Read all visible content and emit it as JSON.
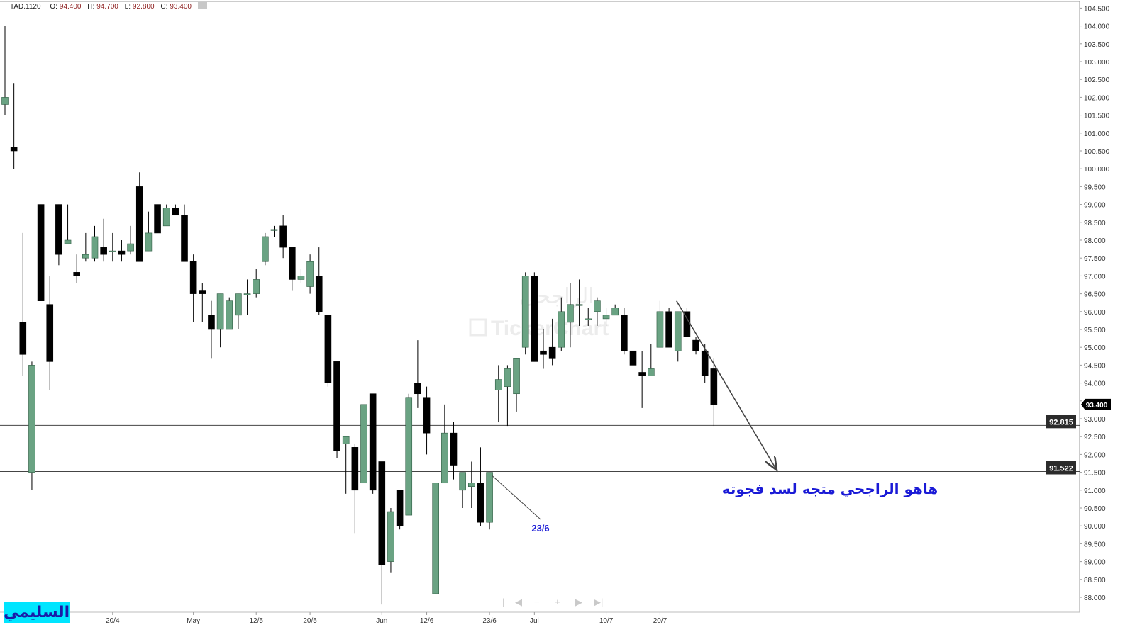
{
  "header": {
    "symbol": "TAD.1120",
    "open_label": "O:",
    "open": "94.400",
    "high_label": "H:",
    "high": "94.700",
    "low_label": "L:",
    "low": "92.800",
    "close_label": "C:",
    "close": "93.400",
    "more": "···"
  },
  "brand_text": "السليمي",
  "watermark": {
    "arabic": "الراجحي",
    "latin": "TickerChart"
  },
  "colors": {
    "up": "#6aa383",
    "down": "#000000",
    "lines": "#444444",
    "annotation": "#1a1ad6",
    "price_tag": "#2b2b2b"
  },
  "chart_data": {
    "type": "candlestick",
    "y_axis": {
      "min": 88.0,
      "max": 104.5,
      "step": 0.5,
      "side": "right",
      "tick_labels": [
        "104.500",
        "104.000",
        "103.500",
        "103.000",
        "102.500",
        "102.000",
        "101.500",
        "101.000",
        "100.500",
        "100.000",
        "99.500",
        "99.000",
        "98.500",
        "98.000",
        "97.500",
        "97.000",
        "96.500",
        "96.000",
        "95.500",
        "95.000",
        "94.500",
        "94.000",
        "93.500",
        "93.000",
        "92.500",
        "92.000",
        "91.500",
        "91.000",
        "90.500",
        "90.000",
        "89.500",
        "89.000",
        "88.500",
        "88.000"
      ]
    },
    "x_axis": {
      "labels": [
        "20/4",
        "May",
        "12/5",
        "20/5",
        "Jun",
        "12/6",
        "23/6",
        "Jul",
        "10/7",
        "20/7"
      ],
      "label_bar_index": [
        12,
        21,
        28,
        34,
        42,
        47,
        54,
        59,
        67,
        73
      ]
    },
    "candles": [
      {
        "o": 101.8,
        "h": 104.0,
        "l": 101.5,
        "c": 102.0
      },
      {
        "o": 100.6,
        "h": 102.4,
        "l": 100.0,
        "c": 100.5
      },
      {
        "o": 95.7,
        "h": 98.2,
        "l": 94.2,
        "c": 94.8
      },
      {
        "o": 91.5,
        "h": 94.6,
        "l": 91.0,
        "c": 94.5
      },
      {
        "o": 99.0,
        "h": 99.0,
        "l": 96.3,
        "c": 96.3
      },
      {
        "o": 96.2,
        "h": 97.0,
        "l": 93.8,
        "c": 94.6
      },
      {
        "o": 99.0,
        "h": 99.0,
        "l": 97.3,
        "c": 97.6
      },
      {
        "o": 97.9,
        "h": 99.0,
        "l": 97.9,
        "c": 98.0
      },
      {
        "o": 97.1,
        "h": 97.6,
        "l": 96.8,
        "c": 97.0
      },
      {
        "o": 97.5,
        "h": 98.2,
        "l": 97.4,
        "c": 97.6
      },
      {
        "o": 97.5,
        "h": 98.4,
        "l": 97.4,
        "c": 98.1
      },
      {
        "o": 97.8,
        "h": 98.6,
        "l": 97.4,
        "c": 97.6
      },
      {
        "o": 97.7,
        "h": 98.2,
        "l": 97.4,
        "c": 97.7
      },
      {
        "o": 97.7,
        "h": 98.0,
        "l": 97.4,
        "c": 97.6
      },
      {
        "o": 97.7,
        "h": 98.4,
        "l": 97.6,
        "c": 97.9
      },
      {
        "o": 99.5,
        "h": 99.9,
        "l": 97.4,
        "c": 97.4
      },
      {
        "o": 97.7,
        "h": 98.8,
        "l": 97.7,
        "c": 98.2
      },
      {
        "o": 99.0,
        "h": 99.0,
        "l": 98.2,
        "c": 98.2
      },
      {
        "o": 98.4,
        "h": 99.0,
        "l": 98.4,
        "c": 98.9
      },
      {
        "o": 98.9,
        "h": 99.0,
        "l": 98.7,
        "c": 98.7
      },
      {
        "o": 98.7,
        "h": 99.0,
        "l": 97.4,
        "c": 97.4
      },
      {
        "o": 97.4,
        "h": 97.6,
        "l": 95.7,
        "c": 96.5
      },
      {
        "o": 96.6,
        "h": 96.8,
        "l": 95.7,
        "c": 96.5
      },
      {
        "o": 95.9,
        "h": 96.3,
        "l": 94.7,
        "c": 95.5
      },
      {
        "o": 95.5,
        "h": 96.5,
        "l": 95.0,
        "c": 96.5
      },
      {
        "o": 95.5,
        "h": 96.4,
        "l": 95.5,
        "c": 96.3
      },
      {
        "o": 95.9,
        "h": 96.5,
        "l": 95.5,
        "c": 96.5
      },
      {
        "o": 96.5,
        "h": 96.9,
        "l": 95.9,
        "c": 96.5
      },
      {
        "o": 96.5,
        "h": 97.2,
        "l": 96.4,
        "c": 96.9
      },
      {
        "o": 97.4,
        "h": 98.2,
        "l": 97.3,
        "c": 98.1
      },
      {
        "o": 98.3,
        "h": 98.4,
        "l": 98.1,
        "c": 98.3
      },
      {
        "o": 98.4,
        "h": 98.7,
        "l": 97.5,
        "c": 97.8
      },
      {
        "o": 97.8,
        "h": 97.8,
        "l": 96.6,
        "c": 96.9
      },
      {
        "o": 96.9,
        "h": 97.2,
        "l": 96.8,
        "c": 97.0
      },
      {
        "o": 96.7,
        "h": 97.6,
        "l": 96.5,
        "c": 97.4
      },
      {
        "o": 97.0,
        "h": 97.8,
        "l": 95.9,
        "c": 96.0
      },
      {
        "o": 95.9,
        "h": 95.9,
        "l": 93.9,
        "c": 94.0
      },
      {
        "o": 94.6,
        "h": 94.6,
        "l": 91.9,
        "c": 92.1
      },
      {
        "o": 92.3,
        "h": 92.5,
        "l": 90.9,
        "c": 92.5
      },
      {
        "o": 92.2,
        "h": 92.3,
        "l": 89.8,
        "c": 91.0
      },
      {
        "o": 91.2,
        "h": 93.4,
        "l": 91.2,
        "c": 93.4
      },
      {
        "o": 93.7,
        "h": 93.7,
        "l": 90.9,
        "c": 91.0
      },
      {
        "o": 91.8,
        "h": 91.8,
        "l": 87.8,
        "c": 88.9
      },
      {
        "o": 89.0,
        "h": 90.5,
        "l": 88.7,
        "c": 90.4
      },
      {
        "o": 91.0,
        "h": 91.0,
        "l": 89.9,
        "c": 90.0
      },
      {
        "o": 90.3,
        "h": 93.7,
        "l": 90.3,
        "c": 93.6
      },
      {
        "o": 94.0,
        "h": 95.2,
        "l": 93.3,
        "c": 93.7
      },
      {
        "o": 93.6,
        "h": 93.9,
        "l": 92.0,
        "c": 92.6
      },
      {
        "o": 88.1,
        "h": 91.2,
        "l": 88.1,
        "c": 91.2
      },
      {
        "o": 91.2,
        "h": 93.4,
        "l": 91.2,
        "c": 92.6
      },
      {
        "o": 92.6,
        "h": 92.9,
        "l": 91.3,
        "c": 91.7
      },
      {
        "o": 91.0,
        "h": 91.4,
        "l": 90.5,
        "c": 91.5
      },
      {
        "o": 91.1,
        "h": 91.8,
        "l": 90.5,
        "c": 91.2
      },
      {
        "o": 91.2,
        "h": 92.2,
        "l": 90.0,
        "c": 90.1
      },
      {
        "o": 90.1,
        "h": 91.5,
        "l": 89.9,
        "c": 91.5
      },
      {
        "o": 93.8,
        "h": 94.5,
        "l": 92.9,
        "c": 94.1
      },
      {
        "o": 93.9,
        "h": 94.5,
        "l": 92.8,
        "c": 94.4
      },
      {
        "o": 93.7,
        "h": 94.7,
        "l": 93.2,
        "c": 94.7
      },
      {
        "o": 95.0,
        "h": 97.1,
        "l": 94.8,
        "c": 97.0
      },
      {
        "o": 97.0,
        "h": 97.1,
        "l": 94.6,
        "c": 94.6
      },
      {
        "o": 94.9,
        "h": 95.5,
        "l": 94.4,
        "c": 94.8
      },
      {
        "o": 95.0,
        "h": 95.8,
        "l": 94.5,
        "c": 94.7
      },
      {
        "o": 95.0,
        "h": 96.4,
        "l": 94.9,
        "c": 96.0
      },
      {
        "o": 95.7,
        "h": 96.8,
        "l": 95.0,
        "c": 96.2
      },
      {
        "o": 96.2,
        "h": 96.9,
        "l": 95.6,
        "c": 96.2
      },
      {
        "o": 95.8,
        "h": 96.1,
        "l": 95.6,
        "c": 95.8
      },
      {
        "o": 96.0,
        "h": 96.4,
        "l": 95.6,
        "c": 96.3
      },
      {
        "o": 95.8,
        "h": 96.1,
        "l": 95.6,
        "c": 95.9
      },
      {
        "o": 95.9,
        "h": 96.2,
        "l": 95.9,
        "c": 96.1
      },
      {
        "o": 95.9,
        "h": 96.1,
        "l": 94.8,
        "c": 94.9
      },
      {
        "o": 94.9,
        "h": 95.3,
        "l": 94.1,
        "c": 94.5
      },
      {
        "o": 94.3,
        "h": 94.9,
        "l": 93.3,
        "c": 94.2
      },
      {
        "o": 94.2,
        "h": 95.1,
        "l": 94.2,
        "c": 94.4
      },
      {
        "o": 95.0,
        "h": 96.3,
        "l": 95.0,
        "c": 96.0
      },
      {
        "o": 96.0,
        "h": 96.1,
        "l": 95.0,
        "c": 95.0
      },
      {
        "o": 94.9,
        "h": 96.0,
        "l": 94.6,
        "c": 96.0
      },
      {
        "o": 96.0,
        "h": 96.1,
        "l": 95.3,
        "c": 95.3
      },
      {
        "o": 95.2,
        "h": 95.3,
        "l": 94.8,
        "c": 94.9
      },
      {
        "o": 94.9,
        "h": 95.1,
        "l": 94.0,
        "c": 94.2
      },
      {
        "o": 94.4,
        "h": 94.7,
        "l": 92.8,
        "c": 93.4
      }
    ],
    "horizontal_lines": [
      {
        "value": 92.815,
        "label": "92.815"
      },
      {
        "value": 91.522,
        "label": "91.522"
      }
    ],
    "last_price": {
      "value": 93.4,
      "label": "93.400"
    },
    "annotations": [
      {
        "text": "23/6"
      },
      {
        "text": "هاهو الراجحي متجه لسد فجوته"
      }
    ]
  },
  "navigator": {
    "first": "|",
    "prev": "◀",
    "zoom_out": "−",
    "zoom_in": "+",
    "next": "▶",
    "last": "▶|"
  }
}
